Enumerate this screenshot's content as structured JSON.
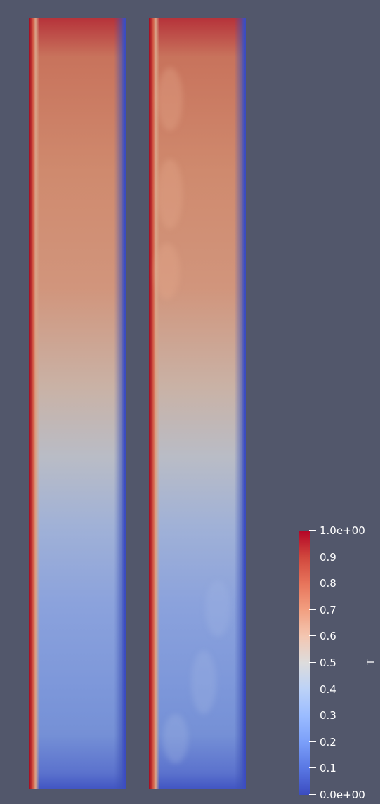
{
  "background_color": "#52576b",
  "colorbar": {
    "title": "T",
    "range": [
      0.0,
      1.0
    ],
    "colormap": "cool-to-warm",
    "colors": {
      "min": "#3b4cc0",
      "mid": "#dddcdc",
      "max": "#b40426"
    },
    "labels": [
      "1.0e+00",
      "0.9",
      "0.8",
      "0.7",
      "0.6",
      "0.5",
      "0.4",
      "0.3",
      "0.2",
      "0.1",
      "0.0e+00"
    ]
  }
}
